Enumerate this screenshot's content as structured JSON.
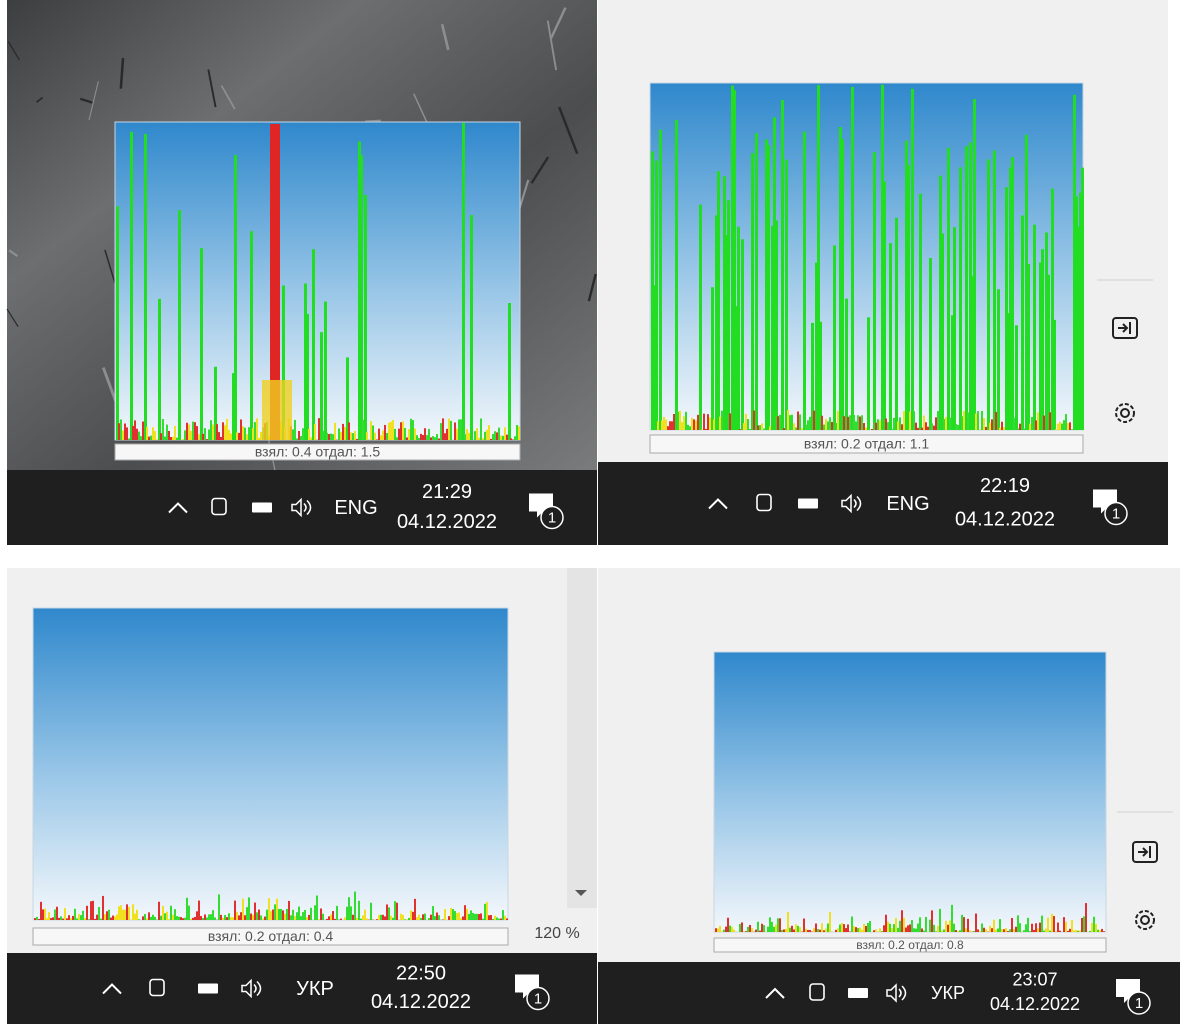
{
  "panels": [
    {
      "status": "взял: 0.4 отдал: 1.5",
      "taskbar": {
        "language": "ENG",
        "time": "21:29",
        "date": "04.12.2022",
        "notifications": 1
      }
    },
    {
      "status": "взял: 0.2 отдал: 1.1",
      "taskbar": {
        "language": "ENG",
        "time": "22:19",
        "date": "04.12.2022",
        "notifications": 1
      }
    },
    {
      "status": "взял: 0.2 отдал: 0.4",
      "taskbar": {
        "language": "УКР",
        "time": "22:50",
        "date": "04.12.2022",
        "notifications": 1
      }
    },
    {
      "status": "взял: 0.2 отдал: 0.8",
      "taskbar": {
        "language": "УКР",
        "time": "23:07",
        "date": "04.12.2022",
        "notifications": 1
      }
    }
  ],
  "zoom": "120 %"
}
